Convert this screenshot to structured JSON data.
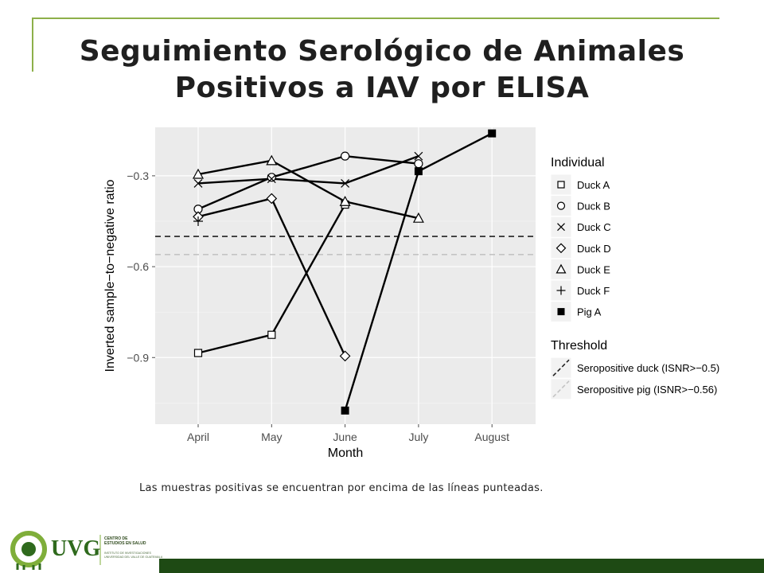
{
  "slide": {
    "title_line1": "Seguimiento Serológico de Animales",
    "title_line2": "Positivos a IAV por ELISA",
    "caption": "Las muestras positivas se encuentran por encima de las líneas punteadas.",
    "accent_color": "#8db04a",
    "footer_color": "#1e4a14"
  },
  "logo": {
    "mark_text": "UVG",
    "line1": "CENTRO DE",
    "line2": "ESTUDIOS EN SALUD",
    "line3": "INSTITUTO DE INVESTIGACIONES",
    "line4": "UNIVERSIDAD DEL VALLE DE GUATEMALA"
  },
  "chart_data": {
    "type": "line",
    "xlabel": "Month",
    "ylabel": "Inverted sample−to−negative ratio",
    "categories": [
      "April",
      "May",
      "June",
      "July",
      "August"
    ],
    "yticks": [
      -0.9,
      -0.6,
      -0.3
    ],
    "ytick_labels": [
      "−0.9",
      "−0.6",
      "−0.3"
    ],
    "ylim": [
      -1.12,
      -0.14
    ],
    "grid": true,
    "legend_position": "right",
    "legend_title": "Individual",
    "series": [
      {
        "name": "Duck A",
        "marker": "square-open",
        "values": [
          -0.885,
          -0.825,
          -0.395,
          null,
          null
        ]
      },
      {
        "name": "Duck B",
        "marker": "circle-open",
        "values": [
          -0.41,
          -0.305,
          -0.235,
          -0.26,
          null
        ]
      },
      {
        "name": "Duck C",
        "marker": "x",
        "values": [
          -0.325,
          -0.31,
          -0.325,
          -0.235,
          null
        ]
      },
      {
        "name": "Duck D",
        "marker": "diamond-open",
        "values": [
          -0.435,
          -0.375,
          -0.895,
          null,
          null
        ]
      },
      {
        "name": "Duck E",
        "marker": "triangle-open",
        "values": [
          -0.295,
          -0.25,
          -0.385,
          -0.44,
          null
        ]
      },
      {
        "name": "Duck F",
        "marker": "plus",
        "values": [
          -0.45,
          null,
          null,
          null,
          null
        ]
      },
      {
        "name": "Pig A",
        "marker": "square-filled",
        "values": [
          null,
          null,
          -1.075,
          -0.285,
          -0.16
        ]
      }
    ],
    "thresholds_title": "Threshold",
    "thresholds": [
      {
        "label": "Seropositive duck (ISNR>−0.5)",
        "value": -0.5,
        "color": "#222222"
      },
      {
        "label": "Seropositive pig (ISNR>−0.56)",
        "value": -0.56,
        "color": "#c4c4c4"
      }
    ]
  }
}
